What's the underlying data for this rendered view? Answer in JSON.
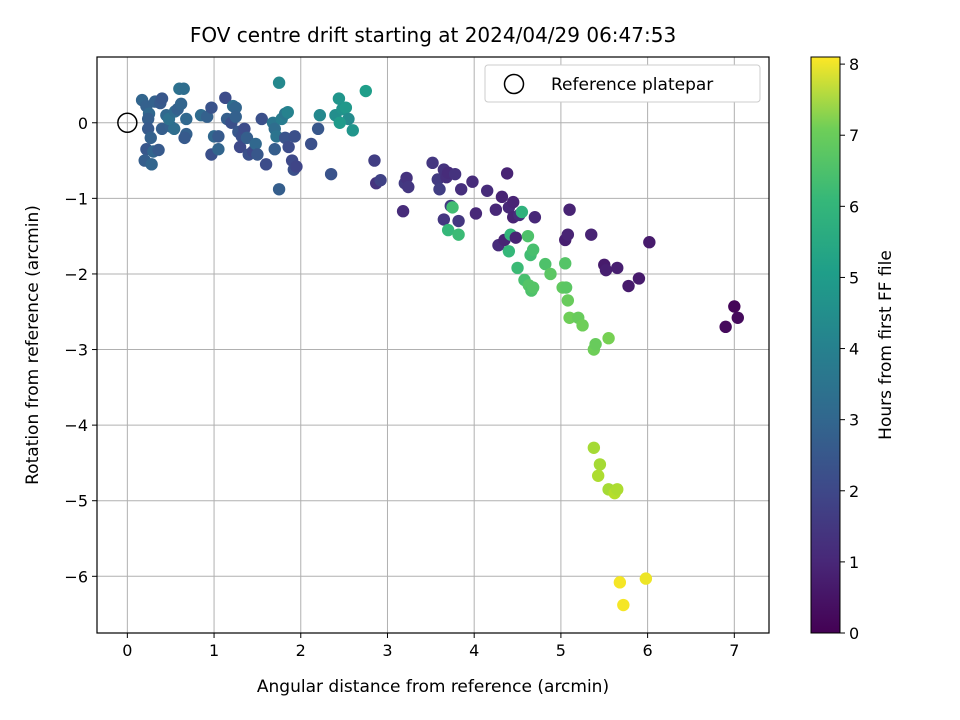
{
  "chart_data": {
    "type": "scatter",
    "title": "FOV centre drift starting at 2024/04/29 06:47:53",
    "xlabel": "Angular distance from reference (arcmin)",
    "ylabel": "Rotation from reference (arcmin)",
    "xlim": [
      -0.35,
      7.4
    ],
    "ylim": [
      -6.75,
      0.87
    ],
    "xticks": [
      0,
      1,
      2,
      3,
      4,
      5,
      6,
      7
    ],
    "yticks": [
      0,
      -1,
      -2,
      -3,
      -4,
      -5,
      -6
    ],
    "grid": true,
    "legend": {
      "position": "top-right",
      "entries": [
        {
          "label": "Reference platepar",
          "marker": "open-circle"
        }
      ]
    },
    "reference_point": {
      "x": 0,
      "y": 0
    },
    "colorbar": {
      "label": "Hours from first FF file",
      "range": [
        0,
        8.1
      ],
      "ticks": [
        0,
        1,
        2,
        3,
        4,
        5,
        6,
        7,
        8
      ],
      "colormap": "viridis"
    },
    "points": [
      {
        "x": 0.17,
        "y": 0.3,
        "c": 2.6
      },
      {
        "x": 0.22,
        "y": 0.22,
        "c": 2.5
      },
      {
        "x": 0.25,
        "y": 0.12,
        "c": 2.7
      },
      {
        "x": 0.24,
        "y": 0.05,
        "c": 2.4
      },
      {
        "x": 0.24,
        "y": -0.08,
        "c": 2.3
      },
      {
        "x": 0.27,
        "y": -0.2,
        "c": 2.5
      },
      {
        "x": 0.22,
        "y": -0.35,
        "c": 2.2
      },
      {
        "x": 0.3,
        "y": -0.38,
        "c": 2.6
      },
      {
        "x": 0.36,
        "y": -0.36,
        "c": 2.3
      },
      {
        "x": 0.2,
        "y": -0.5,
        "c": 2.4
      },
      {
        "x": 0.28,
        "y": -0.55,
        "c": 2.6
      },
      {
        "x": 0.32,
        "y": 0.28,
        "c": 2.5
      },
      {
        "x": 0.38,
        "y": 0.26,
        "c": 2.3
      },
      {
        "x": 0.4,
        "y": 0.32,
        "c": 2.2
      },
      {
        "x": 0.45,
        "y": 0.1,
        "c": 2.7
      },
      {
        "x": 0.4,
        "y": -0.08,
        "c": 2.4
      },
      {
        "x": 0.5,
        "y": -0.05,
        "c": 2.5
      },
      {
        "x": 0.54,
        "y": -0.08,
        "c": 2.9
      },
      {
        "x": 0.48,
        "y": 0.05,
        "c": 3.0
      },
      {
        "x": 0.55,
        "y": 0.15,
        "c": 2.8
      },
      {
        "x": 0.58,
        "y": 0.18,
        "c": 2.5
      },
      {
        "x": 0.6,
        "y": 0.45,
        "c": 3.0
      },
      {
        "x": 0.65,
        "y": 0.45,
        "c": 2.9
      },
      {
        "x": 0.62,
        "y": 0.25,
        "c": 2.6
      },
      {
        "x": 0.68,
        "y": 0.05,
        "c": 2.7
      },
      {
        "x": 0.68,
        "y": -0.15,
        "c": 2.5
      },
      {
        "x": 0.66,
        "y": -0.2,
        "c": 2.3
      },
      {
        "x": 0.85,
        "y": 0.1,
        "c": 2.8
      },
      {
        "x": 0.92,
        "y": 0.08,
        "c": 2.5
      },
      {
        "x": 0.97,
        "y": 0.2,
        "c": 2.1
      },
      {
        "x": 0.97,
        "y": -0.42,
        "c": 2.0
      },
      {
        "x": 1.0,
        "y": -0.18,
        "c": 2.7
      },
      {
        "x": 1.05,
        "y": -0.35,
        "c": 2.6
      },
      {
        "x": 1.05,
        "y": -0.18,
        "c": 2.3
      },
      {
        "x": 1.13,
        "y": 0.33,
        "c": 1.9
      },
      {
        "x": 1.15,
        "y": 0.05,
        "c": 2.4
      },
      {
        "x": 1.2,
        "y": 0.0,
        "c": 2.0
      },
      {
        "x": 1.22,
        "y": 0.22,
        "c": 2.9
      },
      {
        "x": 1.25,
        "y": 0.2,
        "c": 2.6
      },
      {
        "x": 1.25,
        "y": 0.08,
        "c": 2.5
      },
      {
        "x": 1.28,
        "y": -0.12,
        "c": 2.2
      },
      {
        "x": 1.32,
        "y": -0.18,
        "c": 2.0
      },
      {
        "x": 1.3,
        "y": -0.32,
        "c": 1.8
      },
      {
        "x": 1.35,
        "y": -0.08,
        "c": 1.9
      },
      {
        "x": 1.38,
        "y": -0.2,
        "c": 2.4
      },
      {
        "x": 1.4,
        "y": -0.42,
        "c": 2.0
      },
      {
        "x": 1.45,
        "y": -0.38,
        "c": 1.8
      },
      {
        "x": 1.48,
        "y": -0.28,
        "c": 2.7
      },
      {
        "x": 1.5,
        "y": -0.42,
        "c": 2.2
      },
      {
        "x": 1.55,
        "y": 0.05,
        "c": 2.0
      },
      {
        "x": 1.6,
        "y": -0.55,
        "c": 1.9
      },
      {
        "x": 1.68,
        "y": 0.0,
        "c": 3.2
      },
      {
        "x": 1.7,
        "y": -0.08,
        "c": 2.9
      },
      {
        "x": 1.72,
        "y": -0.18,
        "c": 3.1
      },
      {
        "x": 1.7,
        "y": -0.35,
        "c": 2.4
      },
      {
        "x": 1.75,
        "y": 0.53,
        "c": 3.8
      },
      {
        "x": 1.75,
        "y": -0.88,
        "c": 2.4
      },
      {
        "x": 1.78,
        "y": 0.05,
        "c": 3.4
      },
      {
        "x": 1.82,
        "y": 0.12,
        "c": 3.2
      },
      {
        "x": 1.85,
        "y": 0.14,
        "c": 3.6
      },
      {
        "x": 1.82,
        "y": -0.2,
        "c": 2.1
      },
      {
        "x": 1.86,
        "y": -0.32,
        "c": 1.9
      },
      {
        "x": 1.9,
        "y": -0.5,
        "c": 1.8
      },
      {
        "x": 1.92,
        "y": -0.62,
        "c": 2.0
      },
      {
        "x": 1.95,
        "y": -0.58,
        "c": 1.7
      },
      {
        "x": 1.93,
        "y": -0.18,
        "c": 2.0
      },
      {
        "x": 2.12,
        "y": -0.28,
        "c": 2.0
      },
      {
        "x": 2.2,
        "y": -0.08,
        "c": 2.2
      },
      {
        "x": 2.22,
        "y": 0.1,
        "c": 3.8
      },
      {
        "x": 2.35,
        "y": -0.68,
        "c": 2.1
      },
      {
        "x": 2.4,
        "y": 0.1,
        "c": 4.0
      },
      {
        "x": 2.44,
        "y": 0.32,
        "c": 4.2
      },
      {
        "x": 2.48,
        "y": 0.18,
        "c": 4.1
      },
      {
        "x": 2.52,
        "y": 0.2,
        "c": 4.3
      },
      {
        "x": 2.55,
        "y": 0.05,
        "c": 3.9
      },
      {
        "x": 2.45,
        "y": 0.0,
        "c": 4.4
      },
      {
        "x": 2.6,
        "y": -0.1,
        "c": 4.2
      },
      {
        "x": 2.75,
        "y": 0.42,
        "c": 4.5
      },
      {
        "x": 2.85,
        "y": -0.5,
        "c": 1.5
      },
      {
        "x": 2.87,
        "y": -0.8,
        "c": 1.2
      },
      {
        "x": 2.92,
        "y": -0.76,
        "c": 1.6
      },
      {
        "x": 3.18,
        "y": -1.17,
        "c": 1.0
      },
      {
        "x": 3.2,
        "y": -0.8,
        "c": 1.4
      },
      {
        "x": 3.22,
        "y": -0.73,
        "c": 1.2
      },
      {
        "x": 3.24,
        "y": -0.85,
        "c": 1.3
      },
      {
        "x": 3.52,
        "y": -0.53,
        "c": 1.3
      },
      {
        "x": 3.58,
        "y": -0.75,
        "c": 1.4
      },
      {
        "x": 3.6,
        "y": -0.88,
        "c": 1.5
      },
      {
        "x": 3.65,
        "y": -0.62,
        "c": 1.2
      },
      {
        "x": 3.65,
        "y": -1.28,
        "c": 1.3
      },
      {
        "x": 3.68,
        "y": -0.72,
        "c": 1.1
      },
      {
        "x": 3.7,
        "y": -0.66,
        "c": 1.0
      },
      {
        "x": 3.73,
        "y": -1.1,
        "c": 1.4
      },
      {
        "x": 3.75,
        "y": -1.12,
        "c": 5.6
      },
      {
        "x": 3.78,
        "y": -0.68,
        "c": 1.2
      },
      {
        "x": 3.82,
        "y": -1.3,
        "c": 1.3
      },
      {
        "x": 3.85,
        "y": -0.88,
        "c": 1.1
      },
      {
        "x": 3.7,
        "y": -1.42,
        "c": 5.4
      },
      {
        "x": 3.82,
        "y": -1.48,
        "c": 5.5
      },
      {
        "x": 3.98,
        "y": -0.78,
        "c": 1.0
      },
      {
        "x": 4.02,
        "y": -1.2,
        "c": 0.9
      },
      {
        "x": 4.15,
        "y": -0.9,
        "c": 1.0
      },
      {
        "x": 4.25,
        "y": -1.15,
        "c": 0.9
      },
      {
        "x": 4.28,
        "y": -1.62,
        "c": 1.0
      },
      {
        "x": 4.32,
        "y": -0.98,
        "c": 0.8
      },
      {
        "x": 4.35,
        "y": -1.55,
        "c": 0.8
      },
      {
        "x": 4.38,
        "y": -0.67,
        "c": 0.8
      },
      {
        "x": 4.4,
        "y": -1.12,
        "c": 0.9
      },
      {
        "x": 4.42,
        "y": -1.48,
        "c": 5.3
      },
      {
        "x": 4.45,
        "y": -1.05,
        "c": 0.8
      },
      {
        "x": 4.45,
        "y": -1.25,
        "c": 0.8
      },
      {
        "x": 4.48,
        "y": -1.52,
        "c": 0.8
      },
      {
        "x": 4.4,
        "y": -1.7,
        "c": 5.4
      },
      {
        "x": 4.52,
        "y": -1.22,
        "c": 1.0
      },
      {
        "x": 4.55,
        "y": -1.18,
        "c": 5.2
      },
      {
        "x": 4.5,
        "y": -1.92,
        "c": 5.5
      },
      {
        "x": 4.58,
        "y": -2.08,
        "c": 5.7
      },
      {
        "x": 4.63,
        "y": -2.15,
        "c": 5.9
      },
      {
        "x": 4.62,
        "y": -1.5,
        "c": 5.8
      },
      {
        "x": 4.65,
        "y": -1.75,
        "c": 5.6
      },
      {
        "x": 4.66,
        "y": -2.22,
        "c": 5.8
      },
      {
        "x": 4.68,
        "y": -1.68,
        "c": 5.7
      },
      {
        "x": 4.7,
        "y": -1.25,
        "c": 0.9
      },
      {
        "x": 4.68,
        "y": -2.18,
        "c": 5.9
      },
      {
        "x": 4.82,
        "y": -1.87,
        "c": 5.8
      },
      {
        "x": 4.88,
        "y": -2.0,
        "c": 6.0
      },
      {
        "x": 5.02,
        "y": -2.18,
        "c": 6.1
      },
      {
        "x": 5.05,
        "y": -1.55,
        "c": 0.7
      },
      {
        "x": 5.05,
        "y": -1.86,
        "c": 5.9
      },
      {
        "x": 5.06,
        "y": -2.18,
        "c": 6.0
      },
      {
        "x": 5.08,
        "y": -1.48,
        "c": 0.8
      },
      {
        "x": 5.1,
        "y": -1.15,
        "c": 0.8
      },
      {
        "x": 5.08,
        "y": -2.35,
        "c": 6.2
      },
      {
        "x": 5.1,
        "y": -2.58,
        "c": 6.3
      },
      {
        "x": 5.2,
        "y": -2.58,
        "c": 6.2
      },
      {
        "x": 5.25,
        "y": -2.68,
        "c": 6.3
      },
      {
        "x": 5.35,
        "y": -1.48,
        "c": 0.8
      },
      {
        "x": 5.38,
        "y": -3.0,
        "c": 6.3
      },
      {
        "x": 5.4,
        "y": -2.93,
        "c": 6.2
      },
      {
        "x": 5.5,
        "y": -1.88,
        "c": 0.6
      },
      {
        "x": 5.52,
        "y": -1.95,
        "c": 0.7
      },
      {
        "x": 5.55,
        "y": -2.85,
        "c": 6.4
      },
      {
        "x": 5.65,
        "y": -1.92,
        "c": 0.7
      },
      {
        "x": 5.78,
        "y": -2.16,
        "c": 0.6
      },
      {
        "x": 5.9,
        "y": -2.06,
        "c": 0.6
      },
      {
        "x": 6.02,
        "y": -1.58,
        "c": 0.6
      },
      {
        "x": 5.38,
        "y": -4.3,
        "c": 7.0
      },
      {
        "x": 5.45,
        "y": -4.52,
        "c": 7.0
      },
      {
        "x": 5.43,
        "y": -4.67,
        "c": 7.1
      },
      {
        "x": 5.55,
        "y": -4.85,
        "c": 7.0
      },
      {
        "x": 5.62,
        "y": -4.9,
        "c": 7.2
      },
      {
        "x": 5.65,
        "y": -4.85,
        "c": 7.1
      },
      {
        "x": 5.68,
        "y": -6.08,
        "c": 8.0
      },
      {
        "x": 5.72,
        "y": -6.38,
        "c": 8.0
      },
      {
        "x": 5.98,
        "y": -6.03,
        "c": 7.9
      },
      {
        "x": 6.9,
        "y": -2.7,
        "c": 0.2
      },
      {
        "x": 7.0,
        "y": -2.43,
        "c": 0.1
      },
      {
        "x": 7.04,
        "y": -2.58,
        "c": 0.2
      }
    ]
  }
}
